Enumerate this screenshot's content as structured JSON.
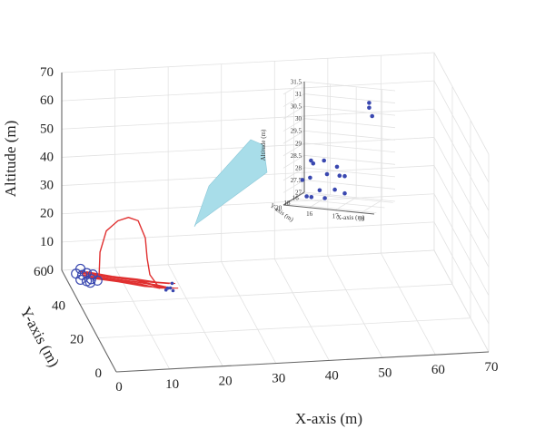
{
  "chart_data": [
    {
      "type": "scatter",
      "subtype": "3d-trajectory",
      "xlabel": "X-axis (m)",
      "ylabel": "Y-axis (m)",
      "zlabel": "Altitude (m)",
      "xlim": [
        0,
        70
      ],
      "ylim": [
        0,
        60
      ],
      "zlim": [
        0,
        70
      ],
      "xticks": [
        "0",
        "10",
        "20",
        "30",
        "40",
        "50",
        "60",
        "70"
      ],
      "yticks": [
        "0",
        "20",
        "40",
        "60"
      ],
      "zticks": [
        "0",
        "10",
        "20",
        "30",
        "40",
        "50",
        "60",
        "70"
      ],
      "grid": true,
      "colors": {
        "trajectory": "#e03030",
        "drones": "#3a48b0",
        "callout": "#a8dde9"
      },
      "trajectories": [
        {
          "x": [
            3,
            8,
            12,
            15,
            17
          ],
          "y": [
            55,
            50,
            46,
            42,
            40
          ],
          "z": [
            1,
            2,
            3,
            4,
            4
          ]
        },
        {
          "x": [
            3,
            8,
            12,
            15,
            17
          ],
          "y": [
            56,
            51,
            47,
            43,
            40
          ],
          "z": [
            1,
            2,
            3,
            3,
            4
          ]
        },
        {
          "x": [
            4,
            9,
            13,
            16,
            17
          ],
          "y": [
            55,
            50,
            45,
            42,
            40
          ],
          "z": [
            0,
            1,
            2,
            3,
            4
          ]
        },
        {
          "x": [
            3,
            7,
            11,
            14,
            17
          ],
          "y": [
            57,
            52,
            48,
            44,
            41
          ],
          "z": [
            1,
            2,
            3,
            4,
            5
          ]
        },
        {
          "x": [
            4,
            9,
            12,
            15,
            17
          ],
          "y": [
            54,
            49,
            45,
            42,
            40
          ],
          "z": [
            1,
            2,
            3,
            3,
            4
          ]
        },
        {
          "x": [
            6,
            6,
            7,
            9,
            11,
            13,
            14,
            14,
            14,
            15
          ],
          "y": [
            54,
            53,
            52,
            51,
            51,
            52,
            50,
            48,
            45,
            40
          ],
          "z": [
            1,
            10,
            18,
            22,
            23,
            21,
            16,
            10,
            6,
            4
          ]
        }
      ],
      "markers": {
        "start": {
          "x": [
            2,
            3,
            4,
            5,
            2.5,
            3.5,
            4.5,
            5.5,
            3,
            4
          ],
          "y": [
            56,
            55,
            56,
            55,
            54,
            53,
            54,
            53,
            57,
            52
          ],
          "z": [
            1,
            1,
            1,
            1,
            0,
            0,
            0,
            0,
            2,
            0
          ]
        },
        "end": {
          "x": [
            16.5,
            17,
            17.5,
            16,
            17.5
          ],
          "y": [
            40,
            40,
            41,
            39,
            40
          ],
          "z": [
            4,
            4,
            5,
            4,
            3
          ]
        }
      }
    },
    {
      "type": "scatter",
      "subtype": "3d-inset",
      "xlabel": "X-axis (m)",
      "ylabel": "Y-axis (m)",
      "zlabel": "Altitude (m)",
      "xlim": [
        15,
        18.5
      ],
      "ylim": [
        15.5,
        20.5
      ],
      "zlim": [
        27,
        31.5
      ],
      "xticks": [
        "16",
        "17",
        "18"
      ],
      "yticks": [
        "16",
        "18",
        "20"
      ],
      "zticks": [
        "27",
        "27.5",
        "28",
        "28.5",
        "29",
        "29.5",
        "30",
        "30.5",
        "31",
        "31.5"
      ],
      "points": {
        "x": [
          17.9,
          17.9,
          18.05,
          15.5,
          16.0,
          15.2,
          15.6,
          16.5,
          15.4,
          16.1,
          16.6,
          16.8,
          15.3,
          15.8,
          16.4,
          16.8,
          16.0,
          15.5
        ],
        "y": [
          18.0,
          18.0,
          18.2,
          17.0,
          17.0,
          17.2,
          17.1,
          17.0,
          16.6,
          16.9,
          17.0,
          17.0,
          16.8,
          16.8,
          16.9,
          17.0,
          16.8,
          16.9
        ],
        "z": [
          31.2,
          31.0,
          30.7,
          28.5,
          28.55,
          27.7,
          28.4,
          28.35,
          27.75,
          28.0,
          28.0,
          28.0,
          27.0,
          27.3,
          27.4,
          27.3,
          27.0,
          27.0
        ]
      }
    }
  ]
}
